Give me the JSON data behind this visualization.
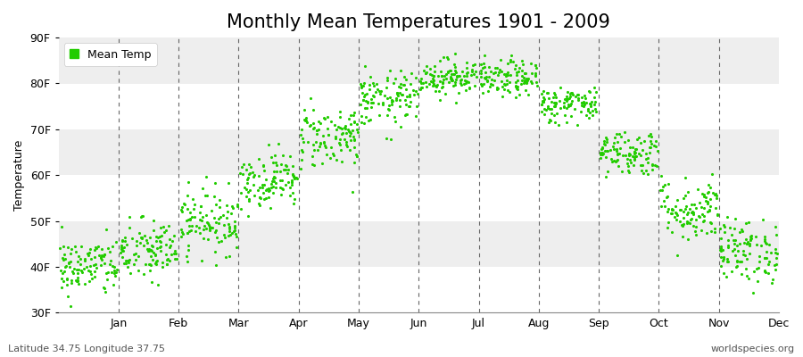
{
  "title": "Monthly Mean Temperatures 1901 - 2009",
  "ylabel": "Temperature",
  "yticks": [
    30,
    40,
    50,
    60,
    70,
    80,
    90
  ],
  "ytick_labels": [
    "30F",
    "40F",
    "50F",
    "60F",
    "70F",
    "80F",
    "90F"
  ],
  "ylim": [
    30,
    90
  ],
  "months": [
    "Jan",
    "Feb",
    "Mar",
    "Apr",
    "May",
    "Jun",
    "Jul",
    "Aug",
    "Sep",
    "Oct",
    "Nov",
    "Dec"
  ],
  "dot_color": "#22CC00",
  "background_color": "#FFFFFF",
  "band_colors_y": [
    "#FFFFFF",
    "#EEEEEE"
  ],
  "footer_left": "Latitude 34.75 Longitude 37.75",
  "footer_right": "worldspecies.org",
  "legend_label": "Mean Temp",
  "title_fontsize": 15,
  "axis_fontsize": 9,
  "footer_fontsize": 8,
  "monthly_mean_temps": [
    40.0,
    43.5,
    50.0,
    59.0,
    68.5,
    76.5,
    81.5,
    81.0,
    75.5,
    65.0,
    52.5,
    43.5
  ],
  "monthly_std_temps": [
    3.2,
    3.5,
    3.5,
    3.0,
    3.5,
    3.0,
    2.0,
    2.0,
    2.0,
    2.5,
    3.5,
    3.5
  ],
  "n_years": 109,
  "seed": 42
}
